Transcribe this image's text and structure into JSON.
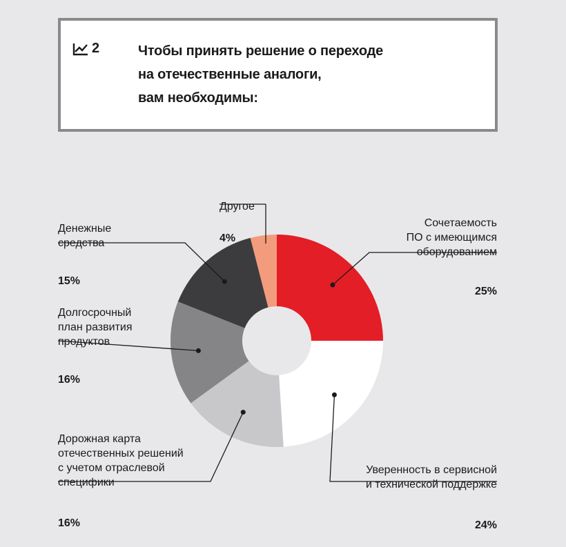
{
  "header": {
    "figure_number": "2",
    "title": "Чтобы принять решение о переходе\nна отечественные аналоги,\nвам необходимы:"
  },
  "chart_data": {
    "type": "pie",
    "variant": "donut",
    "slices": [
      {
        "label": "Сочетаемость\nПО с имеющимся\nоборудованием",
        "value": 25,
        "value_label": "25%",
        "color": "#e31e26"
      },
      {
        "label": "Уверенность в сервисной\nи технической поддержке",
        "value": 24,
        "value_label": "24%",
        "color": "#ffffff"
      },
      {
        "label": "Дорожная карта\nотечественных решений\nс учетом отраслевой\nспецифики",
        "value": 16,
        "value_label": "16%",
        "color": "#c8c8ca"
      },
      {
        "label": "Долгосрочный\nплан развития\nпродуктов",
        "value": 16,
        "value_label": "16%",
        "color": "#858587"
      },
      {
        "label": "Денежные\nсредства",
        "value": 15,
        "value_label": "15%",
        "color": "#3c3c3e"
      },
      {
        "label": "Другое",
        "value": 4,
        "value_label": "4%",
        "color": "#f39b7d"
      }
    ]
  }
}
